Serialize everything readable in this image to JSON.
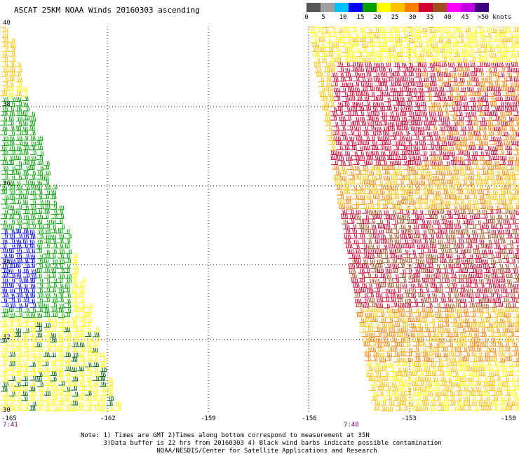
{
  "title": "ASCAT 25KM NOAA Winds 20160303 ascending",
  "scale": {
    "colors": [
      "#555555",
      "#a0a0a0",
      "#00c0ff",
      "#0000ff",
      "#00a000",
      "#ffff00",
      "#ffc000",
      "#ff8000",
      "#d00030",
      "#a05020",
      "#ff00ff",
      "#c000e0",
      "#400080"
    ],
    "labels": [
      "0",
      "5",
      "10",
      "15",
      "20",
      "25",
      "30",
      "35",
      "40",
      "45",
      ">50 knots"
    ]
  },
  "latitudes": [
    "40",
    "38",
    "36",
    "34",
    "32",
    "30"
  ],
  "longitudes": [
    "-165",
    "-162",
    "-159",
    "-156",
    "-153",
    "-150"
  ],
  "times": {
    "left": "7:41",
    "right": "7:40"
  },
  "notes": [
    "Note: 1) Times are GMT 2)Times along bottom correspond to measurement at 35N",
    "      3)Data buffer is 22 hrs from 20160303 4) Black wind barbs indicate possible contamination",
    "                    NOAA/NESDIS/Center for Satellite Applications and Research"
  ],
  "colors": {
    "grid": "#000000",
    "time": "#7a0080"
  }
}
